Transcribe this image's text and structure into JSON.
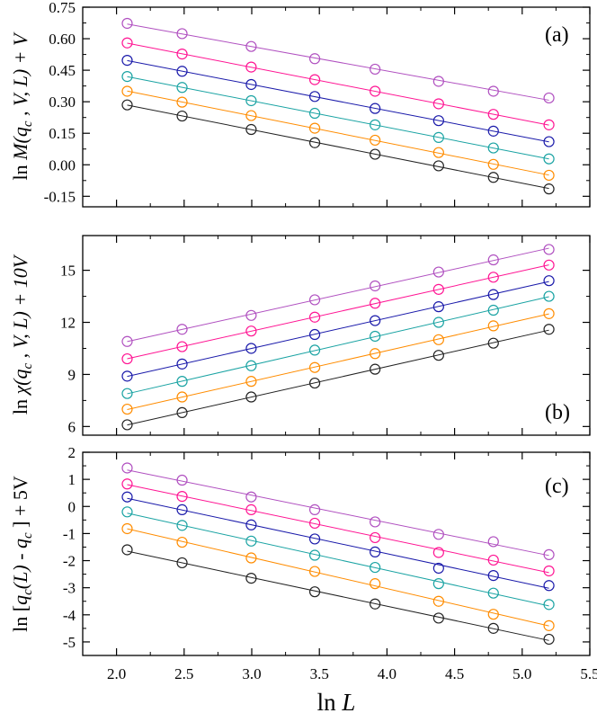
{
  "chart_data": [
    {
      "type": "line",
      "panel_label": "(a)",
      "ylabel": "ln M(qc , V, L) + V",
      "ylabel_parts": {
        "pre": "ln ",
        "main": "M(q",
        "sub": "c",
        "post": " , V, L) + V"
      },
      "xlim": [
        1.75,
        5.5
      ],
      "ylim": [
        -0.2,
        0.75
      ],
      "yticks": [
        "-0.15",
        "0.00",
        "0.15",
        "0.30",
        "0.45",
        "0.60",
        "0.75"
      ],
      "x": [
        2.079,
        2.485,
        2.996,
        3.466,
        3.912,
        4.382,
        4.787,
        5.198
      ],
      "series": [
        {
          "name": "s1",
          "color": "#222222",
          "values": [
            0.285,
            0.232,
            0.168,
            0.105,
            0.05,
            -0.005,
            -0.06,
            -0.115
          ]
        },
        {
          "name": "s2",
          "color": "#ff8c00",
          "values": [
            0.35,
            0.298,
            0.234,
            0.174,
            0.117,
            0.058,
            0.002,
            -0.05
          ]
        },
        {
          "name": "s3",
          "color": "#1aa3a3",
          "values": [
            0.42,
            0.368,
            0.305,
            0.245,
            0.19,
            0.13,
            0.08,
            0.028
          ]
        },
        {
          "name": "s4",
          "color": "#1a1aaa",
          "values": [
            0.497,
            0.445,
            0.382,
            0.325,
            0.268,
            0.21,
            0.16,
            0.11
          ]
        },
        {
          "name": "s5",
          "color": "#ff1493",
          "values": [
            0.58,
            0.527,
            0.465,
            0.405,
            0.35,
            0.29,
            0.24,
            0.19
          ]
        },
        {
          "name": "s6",
          "color": "#b050c0",
          "values": [
            0.673,
            0.624,
            0.563,
            0.505,
            0.455,
            0.397,
            0.35,
            0.318
          ]
        }
      ]
    },
    {
      "type": "line",
      "panel_label": "(b)",
      "ylabel": "ln χ(qc , V, L) + 10V",
      "ylabel_parts": {
        "pre": "ln ",
        "main": "χ(q",
        "sub": "c",
        "post": " , V, L) + 10V"
      },
      "xlim": [
        1.75,
        5.5
      ],
      "ylim": [
        5.5,
        17.0
      ],
      "yticks": [
        "6",
        "9",
        "12",
        "15"
      ],
      "x": [
        2.079,
        2.485,
        2.996,
        3.466,
        3.912,
        4.382,
        4.787,
        5.198
      ],
      "series": [
        {
          "name": "s1",
          "color": "#222222",
          "values": [
            6.1,
            6.8,
            7.7,
            8.5,
            9.3,
            10.1,
            10.8,
            11.6
          ]
        },
        {
          "name": "s2",
          "color": "#ff8c00",
          "values": [
            7.0,
            7.7,
            8.6,
            9.4,
            10.2,
            11.0,
            11.8,
            12.5
          ]
        },
        {
          "name": "s3",
          "color": "#1aa3a3",
          "values": [
            7.9,
            8.6,
            9.5,
            10.4,
            11.2,
            12.0,
            12.7,
            13.5
          ]
        },
        {
          "name": "s4",
          "color": "#1a1aaa",
          "values": [
            8.9,
            9.6,
            10.5,
            11.3,
            12.1,
            12.9,
            13.6,
            14.4
          ]
        },
        {
          "name": "s5",
          "color": "#ff1493",
          "values": [
            9.9,
            10.6,
            11.5,
            12.3,
            13.1,
            13.9,
            14.6,
            15.3
          ]
        },
        {
          "name": "s6",
          "color": "#b050c0",
          "values": [
            10.9,
            11.6,
            12.4,
            13.3,
            14.1,
            14.9,
            15.6,
            16.2
          ]
        }
      ]
    },
    {
      "type": "line",
      "panel_label": "(c)",
      "ylabel": "ln [qc(L) - qc ] + 5V",
      "ylabel_parts": {
        "pre": "ln [",
        "main": "q",
        "sub": "c",
        "mid": "(L) - q",
        "sub2": "c",
        "post": " ] + 5V"
      },
      "xlim": [
        1.75,
        5.5
      ],
      "ylim": [
        -5.5,
        2.0
      ],
      "yticks": [
        "-5",
        "-4",
        "-3",
        "-2",
        "-1",
        "0",
        "1",
        "2"
      ],
      "xticks": [
        "2.0",
        "2.5",
        "3.0",
        "3.5",
        "4.0",
        "4.5",
        "5.0",
        "5.5"
      ],
      "xlabel": "ln L",
      "x": [
        2.079,
        2.485,
        2.996,
        3.466,
        3.912,
        4.382,
        4.787,
        5.198
      ],
      "series": [
        {
          "name": "s1",
          "color": "#222222",
          "values": [
            -1.6,
            -2.08,
            -2.65,
            -3.15,
            -3.6,
            -4.12,
            -4.5,
            -4.9
          ]
        },
        {
          "name": "s2",
          "color": "#ff8c00",
          "values": [
            -0.82,
            -1.32,
            -1.9,
            -2.4,
            -2.85,
            -3.5,
            -3.98,
            -4.4
          ]
        },
        {
          "name": "s3",
          "color": "#1aa3a3",
          "values": [
            -0.2,
            -0.7,
            -1.28,
            -1.8,
            -2.25,
            -2.85,
            -3.2,
            -3.62
          ]
        },
        {
          "name": "s4",
          "color": "#1a1aaa",
          "values": [
            0.35,
            -0.12,
            -0.68,
            -1.2,
            -1.68,
            -2.28,
            -2.55,
            -2.92
          ]
        },
        {
          "name": "s5",
          "color": "#ff1493",
          "values": [
            0.83,
            0.37,
            -0.12,
            -0.62,
            -1.15,
            -1.7,
            -1.98,
            -2.38
          ]
        },
        {
          "name": "s6",
          "color": "#b050c0",
          "values": [
            1.42,
            0.97,
            0.35,
            -0.12,
            -0.57,
            -1.03,
            -1.3,
            -1.78
          ]
        }
      ]
    }
  ]
}
